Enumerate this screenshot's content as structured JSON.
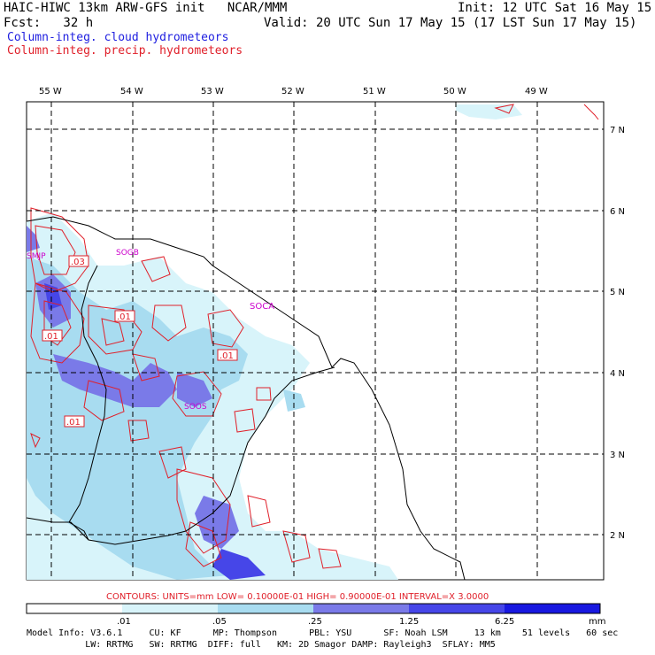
{
  "header": {
    "title": "HAIC-HIWC 13km ARW-GFS init   NCAR/MMM",
    "init": "Init: 12 UTC Sat 16 May 15",
    "fcst": "Fcst:   32 h",
    "valid": "Valid: 20 UTC Sun 17 May 15 (17 LST Sun 17 May 15)",
    "legend_cloud": "Column-integ. cloud hydrometeors",
    "legend_precip": "Column-integ. precip. hydrometeors",
    "legend_cloud_color": "#2020e0",
    "legend_precip_color": "#e0202a"
  },
  "map": {
    "lon_labels": [
      "55 W",
      "54 W",
      "53 W",
      "52 W",
      "51 W",
      "50 W",
      "49 W"
    ],
    "lat_labels": [
      "7 N",
      "6 N",
      "5 N",
      "4 N",
      "3 N",
      "2 N"
    ],
    "station_labels": [
      "SMJP",
      "SOGB",
      "SOCA",
      "SOOS"
    ],
    "contour_labels": [
      ".03",
      ".01",
      ".01",
      ".01",
      ".01"
    ],
    "station_color": "#cc00cc",
    "contour_color": "#e0202a"
  },
  "colorbar": {
    "contour_info": "CONTOURS:  UNITS=mm  LOW= 0.10000E-01  HIGH= 0.90000E-01  INTERVAL=X  3.0000",
    "tick_labels": [
      ".01",
      ".05",
      ".25",
      "1.25",
      "6.25"
    ],
    "units": "mm",
    "colors": [
      "#ffffff",
      "#d8f4fa",
      "#a8dcf0",
      "#7a7ae8",
      "#4646e8",
      "#1818e0"
    ]
  },
  "footer": {
    "line1": "Model Info: V3.6.1     CU: KF      MP: Thompson      PBL: YSU      SF: Noah LSM     13 km    51 levels   60 sec",
    "line2": "           LW: RRTMG   SW: RRTMG  DIFF: full   KM: 2D Smagor DAMP: Rayleigh3  SFLAY: MM5"
  }
}
